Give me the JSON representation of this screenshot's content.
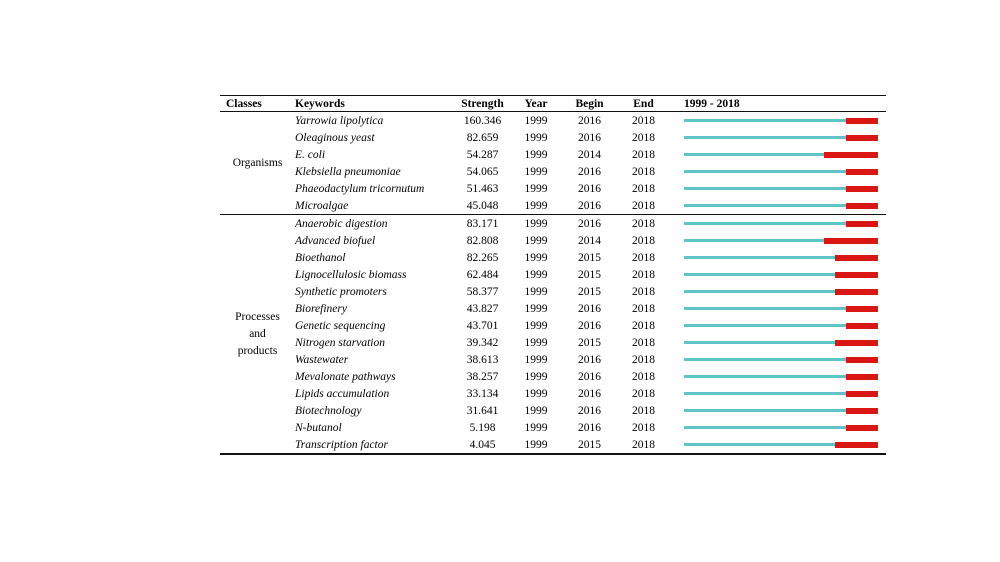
{
  "page": {
    "background": "#ffffff"
  },
  "table": {
    "headers": {
      "classes": "Classes",
      "keywords": "Keywords",
      "strength": "Strength",
      "year": "Year",
      "begin": "Begin",
      "end": "End",
      "period": "1999 - 2018"
    },
    "colors": {
      "timeline_pre": "#5fc4c8",
      "timeline_burst": "#d81614",
      "rule": "#111111"
    },
    "timeline": {
      "start_year": 1999,
      "end_year": 2018
    },
    "sections": [
      {
        "class_label": "Organisms",
        "class_lines": [
          "Organisms"
        ],
        "rows": [
          {
            "keyword": "Yarrowia lipolytica",
            "strength": "160.346",
            "year": "1999",
            "begin": 2016,
            "end": 2018
          },
          {
            "keyword": "Oleaginous yeast",
            "strength": "82.659",
            "year": "1999",
            "begin": 2016,
            "end": 2018
          },
          {
            "keyword": "E. coli",
            "strength": "54.287",
            "year": "1999",
            "begin": 2014,
            "end": 2018
          },
          {
            "keyword": "Klebsiella pneumoniae",
            "strength": "54.065",
            "year": "1999",
            "begin": 2016,
            "end": 2018
          },
          {
            "keyword": "Phaeodactylum tricornutum",
            "strength": "51.463",
            "year": "1999",
            "begin": 2016,
            "end": 2018
          },
          {
            "keyword": "Microalgae",
            "strength": "45.048",
            "year": "1999",
            "begin": 2016,
            "end": 2018
          }
        ]
      },
      {
        "class_label": "Processes and products",
        "class_lines": [
          "Processes",
          "and",
          "products"
        ],
        "rows": [
          {
            "keyword": "Anaerobic digestion",
            "strength": "83.171",
            "year": "1999",
            "begin": 2016,
            "end": 2018
          },
          {
            "keyword": "Advanced biofuel",
            "strength": "82.808",
            "year": "1999",
            "begin": 2014,
            "end": 2018
          },
          {
            "keyword": "Bioethanol",
            "strength": "82.265",
            "year": "1999",
            "begin": 2015,
            "end": 2018
          },
          {
            "keyword": "Lignocellulosic biomass",
            "strength": "62.484",
            "year": "1999",
            "begin": 2015,
            "end": 2018
          },
          {
            "keyword": "Synthetic promoters",
            "strength": "58.377",
            "year": "1999",
            "begin": 2015,
            "end": 2018
          },
          {
            "keyword": "Biorefinery",
            "strength": "43.827",
            "year": "1999",
            "begin": 2016,
            "end": 2018
          },
          {
            "keyword": "Genetic sequencing",
            "strength": "43.701",
            "year": "1999",
            "begin": 2016,
            "end": 2018
          },
          {
            "keyword": "Nitrogen starvation",
            "strength": "39.342",
            "year": "1999",
            "begin": 2015,
            "end": 2018
          },
          {
            "keyword": "Wastewater",
            "strength": "38.613",
            "year": "1999",
            "begin": 2016,
            "end": 2018
          },
          {
            "keyword": "Mevalonate pathways",
            "strength": "38.257",
            "year": "1999",
            "begin": 2016,
            "end": 2018
          },
          {
            "keyword": "Lipids accumulation",
            "strength": "33.134",
            "year": "1999",
            "begin": 2016,
            "end": 2018
          },
          {
            "keyword": "Biotechnology",
            "strength": "31.641",
            "year": "1999",
            "begin": 2016,
            "end": 2018
          },
          {
            "keyword": "N-butanol",
            "strength": "5.198",
            "year": "1999",
            "begin": 2016,
            "end": 2018
          },
          {
            "keyword": "Transcription factor",
            "strength": "4.045",
            "year": "1999",
            "begin": 2015,
            "end": 2018
          }
        ]
      }
    ]
  },
  "chart_data": {
    "type": "table",
    "title": "Keywords with strongest citation bursts, 1999 - 2018",
    "columns": [
      "Classes",
      "Keywords",
      "Strength",
      "Year",
      "Begin",
      "End",
      "1999 - 2018"
    ],
    "timeline_axis": {
      "start": 1999,
      "end": 2018,
      "pre_burst_color": "#5fc4c8",
      "burst_color": "#d81614"
    },
    "rows": [
      [
        "Organisms",
        "Yarrowia lipolytica",
        160.346,
        1999,
        2016,
        2018
      ],
      [
        "Organisms",
        "Oleaginous yeast",
        82.659,
        1999,
        2016,
        2018
      ],
      [
        "Organisms",
        "E. coli",
        54.287,
        1999,
        2014,
        2018
      ],
      [
        "Organisms",
        "Klebsiella pneumoniae",
        54.065,
        1999,
        2016,
        2018
      ],
      [
        "Organisms",
        "Phaeodactylum tricornutum",
        51.463,
        1999,
        2016,
        2018
      ],
      [
        "Organisms",
        "Microalgae",
        45.048,
        1999,
        2016,
        2018
      ],
      [
        "Processes and products",
        "Anaerobic digestion",
        83.171,
        1999,
        2016,
        2018
      ],
      [
        "Processes and products",
        "Advanced biofuel",
        82.808,
        1999,
        2014,
        2018
      ],
      [
        "Processes and products",
        "Bioethanol",
        82.265,
        1999,
        2015,
        2018
      ],
      [
        "Processes and products",
        "Lignocellulosic biomass",
        62.484,
        1999,
        2015,
        2018
      ],
      [
        "Processes and products",
        "Synthetic promoters",
        58.377,
        1999,
        2015,
        2018
      ],
      [
        "Processes and products",
        "Biorefinery",
        43.827,
        1999,
        2016,
        2018
      ],
      [
        "Processes and products",
        "Genetic sequencing",
        43.701,
        1999,
        2016,
        2018
      ],
      [
        "Processes and products",
        "Nitrogen starvation",
        39.342,
        1999,
        2015,
        2018
      ],
      [
        "Processes and products",
        "Wastewater",
        38.613,
        1999,
        2016,
        2018
      ],
      [
        "Processes and products",
        "Mevalonate pathways",
        38.257,
        1999,
        2016,
        2018
      ],
      [
        "Processes and products",
        "Lipids accumulation",
        33.134,
        1999,
        2016,
        2018
      ],
      [
        "Processes and products",
        "Biotechnology",
        31.641,
        1999,
        2016,
        2018
      ],
      [
        "Processes and products",
        "N-butanol",
        5.198,
        1999,
        2016,
        2018
      ],
      [
        "Processes and products",
        "Transcription factor",
        4.045,
        1999,
        2015,
        2018
      ]
    ]
  }
}
